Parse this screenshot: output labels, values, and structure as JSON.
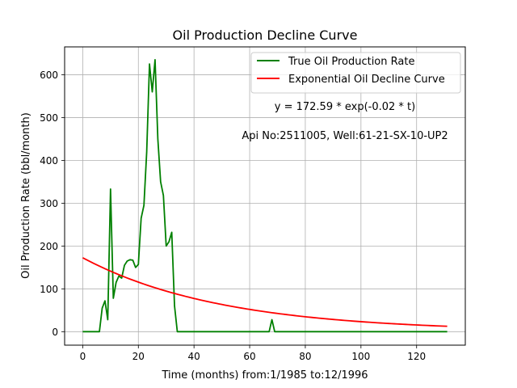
{
  "chart_data": {
    "type": "line",
    "title": "Oil Production Decline Curve",
    "xlabel": "Time (months) from:1/1985 to:12/1996",
    "ylabel": "Oil Production Rate (bbl/month)",
    "xlim": [
      -6.5,
      137.5
    ],
    "ylim": [
      -31.5,
      665
    ],
    "x_ticks": [
      0,
      20,
      40,
      60,
      80,
      100,
      120
    ],
    "y_ticks": [
      0,
      100,
      200,
      300,
      400,
      500,
      600
    ],
    "grid": true,
    "legend_position": "top-right",
    "series": [
      {
        "name": "True Oil Production Rate",
        "color": "#008000",
        "points": [
          [
            0,
            0
          ],
          [
            6,
            0
          ],
          [
            7,
            55
          ],
          [
            8,
            72
          ],
          [
            9,
            28
          ],
          [
            10,
            333
          ],
          [
            11,
            78
          ],
          [
            12,
            115
          ],
          [
            13,
            130
          ],
          [
            14,
            125
          ],
          [
            15,
            155
          ],
          [
            16,
            165
          ],
          [
            17,
            168
          ],
          [
            18,
            167
          ],
          [
            19,
            150
          ],
          [
            20,
            157
          ],
          [
            21,
            265
          ],
          [
            22,
            295
          ],
          [
            23,
            420
          ],
          [
            24,
            625
          ],
          [
            25,
            560
          ],
          [
            26,
            635
          ],
          [
            27,
            450
          ],
          [
            28,
            350
          ],
          [
            29,
            318
          ],
          [
            30,
            200
          ],
          [
            31,
            210
          ],
          [
            32,
            232
          ],
          [
            33,
            60
          ],
          [
            34,
            0
          ],
          [
            67,
            0
          ],
          [
            68,
            28
          ],
          [
            69,
            0
          ],
          [
            131,
            0
          ]
        ]
      },
      {
        "name": "Exponential Oil Decline Curve",
        "color": "#ff0000",
        "model": {
          "a": 172.59,
          "b": -0.02,
          "x_start": 0,
          "x_end": 131
        }
      }
    ],
    "annotations": [
      {
        "text": "y = 172.59 * exp(-0.02 * t)"
      },
      {
        "text": "Api No:2511005, Well:61-21-SX-10-UP2"
      }
    ]
  }
}
